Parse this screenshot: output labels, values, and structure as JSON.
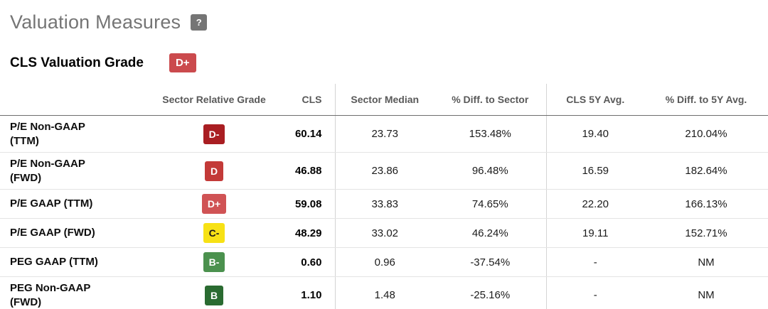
{
  "page": {
    "title": "Valuation Measures",
    "help_icon": "?",
    "grade_label": "CLS Valuation Grade",
    "grade_value": "D+",
    "grade_color": "#cb4a4d"
  },
  "colors": {
    "help_badge_bg": "#757575",
    "header_text": "#595959",
    "header_border": "#6e6e6e",
    "row_border": "#e4e4e4",
    "column_divider": "#d4d4d4"
  },
  "table": {
    "columns": [
      "",
      "Sector Relative Grade",
      "CLS",
      "Sector Median",
      "% Diff. to Sector",
      "CLS 5Y Avg.",
      "% Diff. to 5Y Avg."
    ],
    "rows": [
      {
        "metric": "P/E Non-GAAP\n(TTM)",
        "grade": "D-",
        "grade_bg": "#a91e22",
        "grade_text": "#ffffff",
        "cls": "60.14",
        "sector_median": "23.73",
        "diff_sector": "153.48%",
        "cls_5y": "19.40",
        "diff_5y": "210.04%"
      },
      {
        "metric": "P/E Non-GAAP\n(FWD)",
        "grade": "D",
        "grade_bg": "#c33a38",
        "grade_text": "#ffffff",
        "cls": "46.88",
        "sector_median": "23.86",
        "diff_sector": "96.48%",
        "cls_5y": "16.59",
        "diff_5y": "182.64%"
      },
      {
        "metric": "P/E GAAP (TTM)",
        "grade": "D+",
        "grade_bg": "#d05355",
        "grade_text": "#ffffff",
        "cls": "59.08",
        "sector_median": "33.83",
        "diff_sector": "74.65%",
        "cls_5y": "22.20",
        "diff_5y": "166.13%"
      },
      {
        "metric": "P/E GAAP (FWD)",
        "grade": "C-",
        "grade_bg": "#f7e115",
        "grade_text": "#1a1a1a",
        "cls": "48.29",
        "sector_median": "33.02",
        "diff_sector": "46.24%",
        "cls_5y": "19.11",
        "diff_5y": "152.71%"
      },
      {
        "metric": "PEG GAAP (TTM)",
        "grade": "B-",
        "grade_bg": "#4b914e",
        "grade_text": "#ffffff",
        "cls": "0.60",
        "sector_median": "0.96",
        "diff_sector": "-37.54%",
        "cls_5y": "-",
        "diff_5y": "NM"
      },
      {
        "metric": "PEG Non-GAAP\n(FWD)",
        "grade": "B",
        "grade_bg": "#2a6b31",
        "grade_text": "#ffffff",
        "cls": "1.10",
        "sector_median": "1.48",
        "diff_sector": "-25.16%",
        "cls_5y": "-",
        "diff_5y": "NM"
      }
    ]
  }
}
